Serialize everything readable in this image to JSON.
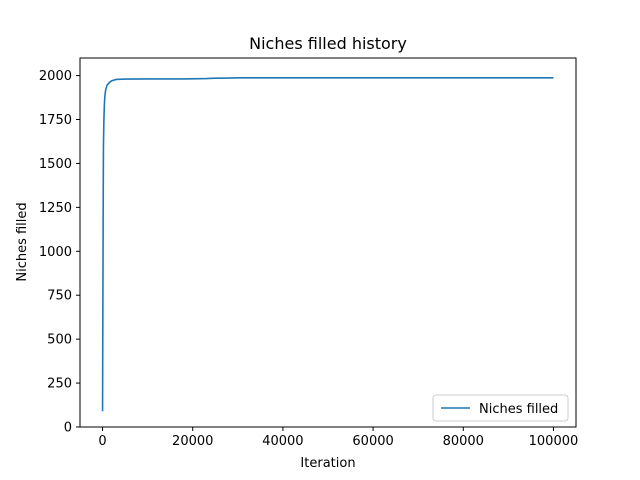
{
  "chart_data": {
    "type": "line",
    "title": "Niches filled history",
    "xlabel": "Iteration",
    "ylabel": "Niches filled",
    "xlim": [
      -5000,
      105000
    ],
    "ylim": [
      0,
      2100
    ],
    "xticks": [
      0,
      20000,
      40000,
      60000,
      80000,
      100000
    ],
    "xtick_labels": [
      "0",
      "20000",
      "40000",
      "60000",
      "80000",
      "100000"
    ],
    "yticks": [
      0,
      250,
      500,
      750,
      1000,
      1250,
      1500,
      1750,
      2000
    ],
    "ytick_labels": [
      "0",
      "250",
      "500",
      "750",
      "1000",
      "1250",
      "1500",
      "1750",
      "2000"
    ],
    "grid": false,
    "legend_position": "lower right",
    "series": [
      {
        "name": "Niches filled",
        "color": "#1f77b4",
        "x": [
          0,
          50,
          100,
          150,
          200,
          300,
          400,
          500,
          700,
          1000,
          1500,
          2000,
          3000,
          5000,
          10000,
          18000,
          23000,
          25000,
          28000,
          30000,
          40000,
          60000,
          80000,
          100000
        ],
        "y": [
          90,
          500,
          900,
          1300,
          1600,
          1750,
          1830,
          1880,
          1920,
          1945,
          1960,
          1970,
          1978,
          1980,
          1981,
          1981,
          1983,
          1985,
          1986,
          1987,
          1987,
          1987,
          1987,
          1987
        ]
      }
    ]
  }
}
